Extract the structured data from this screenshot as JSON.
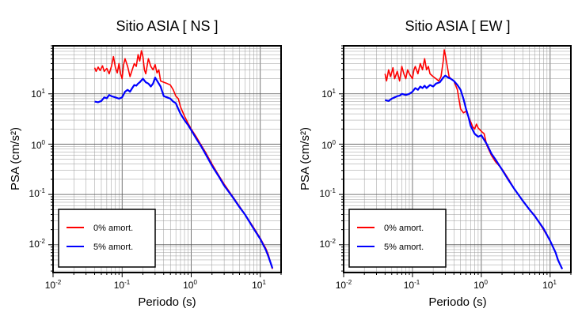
{
  "chart_data": [
    {
      "type": "line",
      "title": "Sitio ASIA [ NS ]",
      "xlabel": "Periodo (s)",
      "ylabel": "PSA (cm/s²)",
      "xscale": "log",
      "yscale": "log",
      "xlim": [
        0.01,
        20
      ],
      "ylim": [
        0.0028,
        90
      ],
      "xticks": [
        {
          "base": "10",
          "exp": "-2"
        },
        {
          "base": "10",
          "exp": "-1"
        },
        {
          "base": "10",
          "exp": "0"
        },
        {
          "base": "10",
          "exp": "1"
        }
      ],
      "yticks": [
        {
          "base": "10",
          "exp": "-2"
        },
        {
          "base": "10",
          "exp": "-1"
        },
        {
          "base": "10",
          "exp": "0"
        },
        {
          "base": "10",
          "exp": "1"
        }
      ],
      "grid": true,
      "legend": "bottom-left",
      "series": [
        {
          "name": "0% amort.",
          "color": "#ff0000",
          "points": [
            [
              0.04,
              33
            ],
            [
              0.042,
              28
            ],
            [
              0.045,
              34
            ],
            [
              0.048,
              29
            ],
            [
              0.052,
              36
            ],
            [
              0.055,
              28
            ],
            [
              0.06,
              32
            ],
            [
              0.065,
              25
            ],
            [
              0.07,
              35
            ],
            [
              0.075,
              55
            ],
            [
              0.08,
              33
            ],
            [
              0.085,
              26
            ],
            [
              0.09,
              40
            ],
            [
              0.095,
              25
            ],
            [
              0.1,
              20
            ],
            [
              0.105,
              38
            ],
            [
              0.11,
              50
            ],
            [
              0.12,
              35
            ],
            [
              0.13,
              22
            ],
            [
              0.14,
              30
            ],
            [
              0.15,
              40
            ],
            [
              0.16,
              35
            ],
            [
              0.17,
              60
            ],
            [
              0.18,
              45
            ],
            [
              0.19,
              72
            ],
            [
              0.2,
              55
            ],
            [
              0.21,
              30
            ],
            [
              0.22,
              25
            ],
            [
              0.24,
              50
            ],
            [
              0.26,
              35
            ],
            [
              0.28,
              30
            ],
            [
              0.3,
              38
            ],
            [
              0.32,
              26
            ],
            [
              0.34,
              30
            ],
            [
              0.36,
              18
            ],
            [
              0.4,
              17
            ],
            [
              0.45,
              16
            ],
            [
              0.5,
              15
            ],
            [
              0.55,
              12
            ],
            [
              0.6,
              9
            ],
            [
              0.65,
              8
            ],
            [
              0.7,
              5.5
            ],
            [
              0.8,
              3.6
            ],
            [
              0.9,
              2.6
            ],
            [
              1.0,
              2.0
            ],
            [
              1.2,
              1.35
            ],
            [
              1.4,
              0.95
            ],
            [
              1.6,
              0.7
            ],
            [
              2.0,
              0.4
            ],
            [
              2.5,
              0.24
            ],
            [
              3.0,
              0.16
            ],
            [
              4.0,
              0.09
            ],
            [
              5.0,
              0.058
            ],
            [
              6.0,
              0.04
            ],
            [
              8.0,
              0.022
            ],
            [
              10.0,
              0.0135
            ],
            [
              12.0,
              0.0085
            ],
            [
              13.0,
              0.0065
            ],
            [
              14.0,
              0.0045
            ],
            [
              15.0,
              0.0033
            ]
          ]
        },
        {
          "name": "5% amort.",
          "color": "#0000ff",
          "points": [
            [
              0.04,
              7
            ],
            [
              0.045,
              6.8
            ],
            [
              0.05,
              7.2
            ],
            [
              0.055,
              8.5
            ],
            [
              0.06,
              8.2
            ],
            [
              0.065,
              9.5
            ],
            [
              0.07,
              9
            ],
            [
              0.08,
              8.5
            ],
            [
              0.09,
              8
            ],
            [
              0.1,
              8.5
            ],
            [
              0.11,
              11
            ],
            [
              0.12,
              12
            ],
            [
              0.13,
              11
            ],
            [
              0.14,
              13
            ],
            [
              0.15,
              15
            ],
            [
              0.16,
              14.5
            ],
            [
              0.17,
              16
            ],
            [
              0.18,
              17
            ],
            [
              0.2,
              20
            ],
            [
              0.22,
              17
            ],
            [
              0.24,
              16
            ],
            [
              0.26,
              14
            ],
            [
              0.28,
              16
            ],
            [
              0.3,
              21
            ],
            [
              0.33,
              17
            ],
            [
              0.36,
              14
            ],
            [
              0.4,
              9
            ],
            [
              0.45,
              8.5
            ],
            [
              0.5,
              8
            ],
            [
              0.55,
              7
            ],
            [
              0.6,
              6.5
            ],
            [
              0.65,
              5
            ],
            [
              0.7,
              4
            ],
            [
              0.8,
              3
            ],
            [
              0.9,
              2.4
            ],
            [
              1.0,
              1.9
            ],
            [
              1.2,
              1.25
            ],
            [
              1.4,
              0.9
            ],
            [
              1.6,
              0.65
            ],
            [
              2.0,
              0.37
            ],
            [
              2.5,
              0.23
            ],
            [
              3.0,
              0.15
            ],
            [
              4.0,
              0.088
            ],
            [
              5.0,
              0.056
            ],
            [
              6.0,
              0.04
            ],
            [
              8.0,
              0.021
            ],
            [
              10.0,
              0.013
            ],
            [
              12.0,
              0.008
            ],
            [
              13.0,
              0.006
            ],
            [
              14.0,
              0.0045
            ],
            [
              15.0,
              0.0034
            ]
          ]
        }
      ]
    },
    {
      "type": "line",
      "title": "Sitio ASIA [ EW ]",
      "xlabel": "Periodo (s)",
      "ylabel": "PSA (cm/s²)",
      "xscale": "log",
      "yscale": "log",
      "xlim": [
        0.01,
        20
      ],
      "ylim": [
        0.0028,
        90
      ],
      "xticks": [
        {
          "base": "10",
          "exp": "-2"
        },
        {
          "base": "10",
          "exp": "-1"
        },
        {
          "base": "10",
          "exp": "0"
        },
        {
          "base": "10",
          "exp": "1"
        }
      ],
      "yticks": [
        {
          "base": "10",
          "exp": "-2"
        },
        {
          "base": "10",
          "exp": "-1"
        },
        {
          "base": "10",
          "exp": "0"
        },
        {
          "base": "10",
          "exp": "1"
        }
      ],
      "grid": true,
      "legend": "bottom-left",
      "series": [
        {
          "name": "0% amort.",
          "color": "#ff0000",
          "points": [
            [
              0.04,
              25
            ],
            [
              0.042,
              18
            ],
            [
              0.045,
              30
            ],
            [
              0.048,
              22
            ],
            [
              0.052,
              33
            ],
            [
              0.055,
              20
            ],
            [
              0.06,
              28
            ],
            [
              0.065,
              18
            ],
            [
              0.07,
              35
            ],
            [
              0.075,
              25
            ],
            [
              0.08,
              20
            ],
            [
              0.085,
              30
            ],
            [
              0.09,
              25
            ],
            [
              0.1,
              20
            ],
            [
              0.105,
              30
            ],
            [
              0.11,
              35
            ],
            [
              0.12,
              25
            ],
            [
              0.13,
              40
            ],
            [
              0.14,
              30
            ],
            [
              0.15,
              50
            ],
            [
              0.16,
              30
            ],
            [
              0.17,
              35
            ],
            [
              0.18,
              25
            ],
            [
              0.2,
              22
            ],
            [
              0.22,
              20
            ],
            [
              0.24,
              18
            ],
            [
              0.26,
              22
            ],
            [
              0.28,
              45
            ],
            [
              0.29,
              75
            ],
            [
              0.3,
              60
            ],
            [
              0.32,
              35
            ],
            [
              0.34,
              22
            ],
            [
              0.36,
              20
            ],
            [
              0.4,
              18
            ],
            [
              0.45,
              12
            ],
            [
              0.5,
              5
            ],
            [
              0.55,
              4.2
            ],
            [
              0.6,
              4.5
            ],
            [
              0.65,
              3.5
            ],
            [
              0.7,
              2.8
            ],
            [
              0.75,
              2.2
            ],
            [
              0.8,
              2.0
            ],
            [
              0.85,
              2.5
            ],
            [
              0.9,
              2.1
            ],
            [
              1.0,
              1.8
            ],
            [
              1.1,
              1.6
            ],
            [
              1.2,
              0.95
            ],
            [
              1.4,
              0.6
            ],
            [
              1.6,
              0.45
            ],
            [
              2.0,
              0.32
            ],
            [
              2.5,
              0.2
            ],
            [
              3.0,
              0.13
            ],
            [
              4.0,
              0.075
            ],
            [
              5.0,
              0.05
            ],
            [
              6.0,
              0.038
            ],
            [
              8.0,
              0.02
            ],
            [
              10.0,
              0.012
            ],
            [
              12.0,
              0.007
            ],
            [
              13.0,
              0.005
            ],
            [
              14.0,
              0.004
            ],
            [
              15.0,
              0.0033
            ]
          ]
        },
        {
          "name": "5% amort.",
          "color": "#0000ff",
          "points": [
            [
              0.04,
              7.5
            ],
            [
              0.045,
              7.2
            ],
            [
              0.05,
              8
            ],
            [
              0.055,
              8.5
            ],
            [
              0.06,
              9
            ],
            [
              0.065,
              9.2
            ],
            [
              0.07,
              10
            ],
            [
              0.08,
              9.5
            ],
            [
              0.09,
              10
            ],
            [
              0.1,
              11
            ],
            [
              0.11,
              13
            ],
            [
              0.12,
              12
            ],
            [
              0.13,
              14
            ],
            [
              0.14,
              13
            ],
            [
              0.15,
              14.5
            ],
            [
              0.16,
              13
            ],
            [
              0.18,
              15
            ],
            [
              0.2,
              14
            ],
            [
              0.22,
              16
            ],
            [
              0.25,
              17
            ],
            [
              0.28,
              21
            ],
            [
              0.3,
              23
            ],
            [
              0.33,
              21
            ],
            [
              0.36,
              20
            ],
            [
              0.4,
              18
            ],
            [
              0.45,
              15
            ],
            [
              0.5,
              12
            ],
            [
              0.55,
              8
            ],
            [
              0.6,
              5
            ],
            [
              0.65,
              3.5
            ],
            [
              0.7,
              2.3
            ],
            [
              0.8,
              1.6
            ],
            [
              0.9,
              1.4
            ],
            [
              1.0,
              1.5
            ],
            [
              1.2,
              1.0
            ],
            [
              1.4,
              0.65
            ],
            [
              1.6,
              0.5
            ],
            [
              2.0,
              0.31
            ],
            [
              2.5,
              0.19
            ],
            [
              3.0,
              0.13
            ],
            [
              4.0,
              0.075
            ],
            [
              5.0,
              0.05
            ],
            [
              6.0,
              0.037
            ],
            [
              8.0,
              0.021
            ],
            [
              10.0,
              0.012
            ],
            [
              12.0,
              0.007
            ],
            [
              13.0,
              0.005
            ],
            [
              14.0,
              0.004
            ],
            [
              15.0,
              0.0033
            ]
          ]
        }
      ]
    }
  ]
}
